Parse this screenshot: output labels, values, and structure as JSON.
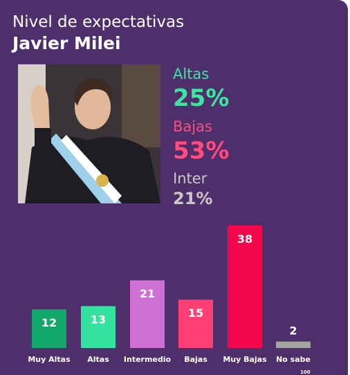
{
  "header": {
    "title": "Nivel de expectativas",
    "subtitle": "Javier Milei"
  },
  "photo": {
    "icon": "person-photo-icon"
  },
  "summary": [
    {
      "label": "Altas",
      "value": "25%",
      "color": "#3ee4a0"
    },
    {
      "label": "Bajas",
      "value": "53%",
      "color": "#ff4b7d"
    },
    {
      "label": "Inter",
      "value": "21%",
      "color": "#c9c9c9"
    }
  ],
  "chart_data": {
    "type": "bar",
    "title": "",
    "xlabel": "",
    "ylabel": "",
    "ylim": [
      0,
      38
    ],
    "grid": false,
    "legend": "none",
    "categories": [
      "Muy Altas",
      "Altas",
      "Intermedio",
      "Bajas",
      "Muy Bajas",
      "No sabe"
    ],
    "values": [
      12,
      13,
      21,
      15,
      38,
      2
    ],
    "colors": [
      "#13a86b",
      "#35e3a0",
      "#cf6fd4",
      "#ff3f73",
      "#f2074a",
      "#a3a3a3"
    ]
  },
  "footnote": "100"
}
